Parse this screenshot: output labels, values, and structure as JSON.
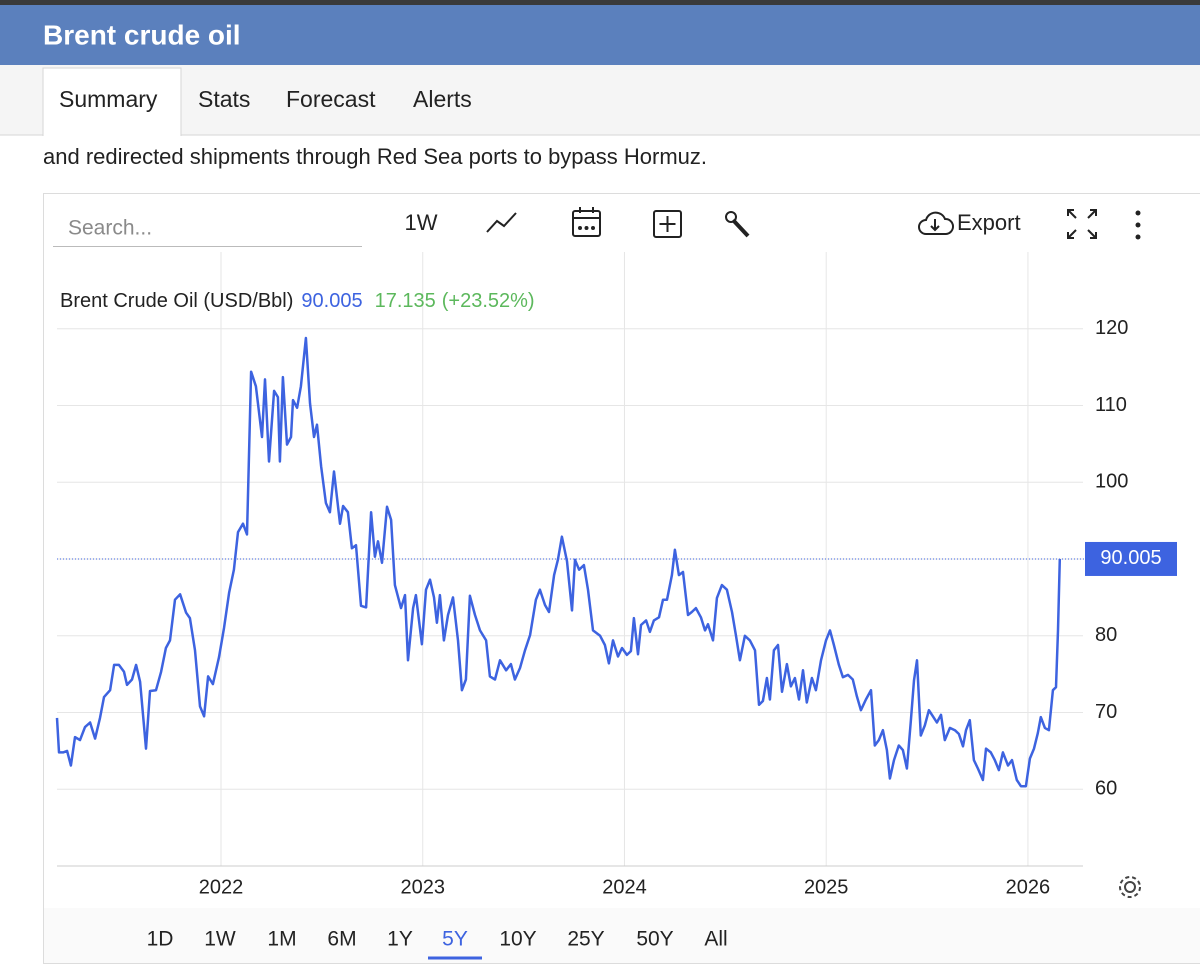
{
  "header": {
    "title": "Brent crude oil"
  },
  "tabs": [
    "Summary",
    "Stats",
    "Forecast",
    "Alerts"
  ],
  "active_tab": "Summary",
  "intro": "and redirected shipments through Red Sea ports to bypass Hormuz.",
  "toolbar": {
    "search_placeholder": "Search...",
    "interval": "1W",
    "export": "Export"
  },
  "ranges": [
    "1D",
    "1W",
    "1M",
    "6M",
    "1Y",
    "5Y",
    "10Y",
    "25Y",
    "50Y",
    "All"
  ],
  "active_range": "5Y",
  "chart_data": {
    "type": "line",
    "x": [
      2021.187,
      2021.197,
      2021.217,
      2021.237,
      2021.256,
      2021.276,
      2021.301,
      2021.326,
      2021.351,
      2021.376,
      2021.4,
      2021.42,
      2021.45,
      2021.47,
      2021.494,
      2021.519,
      2021.534,
      2021.559,
      2021.579,
      2021.599,
      2021.628,
      2021.648,
      2021.678,
      2021.703,
      2021.727,
      2021.747,
      2021.772,
      2021.797,
      2021.827,
      2021.846,
      2021.871,
      2021.896,
      2021.916,
      2021.936,
      2021.96,
      2021.99,
      2022.015,
      2022.04,
      2022.064,
      2022.084,
      2022.109,
      2022.129,
      2022.149,
      2022.173,
      2022.203,
      2022.218,
      2022.238,
      2022.263,
      2022.282,
      2022.292,
      2022.307,
      2022.327,
      2022.347,
      2022.357,
      2022.377,
      2022.396,
      2022.421,
      2022.441,
      2022.461,
      2022.476,
      2022.496,
      2022.52,
      2022.54,
      2022.56,
      2022.59,
      2022.605,
      2022.629,
      2022.649,
      2022.669,
      2022.694,
      2022.719,
      2022.744,
      2022.763,
      2022.778,
      2022.798,
      2022.823,
      2022.843,
      2022.862,
      2022.892,
      2022.912,
      2022.927,
      2022.952,
      2022.966,
      2022.996,
      2023.016,
      2023.036,
      2023.056,
      2023.07,
      2023.085,
      2023.105,
      2023.125,
      2023.15,
      2023.175,
      2023.194,
      2023.214,
      2023.234,
      2023.259,
      2023.284,
      2023.314,
      2023.333,
      2023.358,
      2023.383,
      2023.413,
      2023.437,
      2023.457,
      2023.482,
      2023.507,
      2023.532,
      2023.561,
      2023.581,
      2023.606,
      2023.626,
      2023.651,
      2023.67,
      2023.69,
      2023.715,
      2023.74,
      2023.755,
      2023.775,
      2023.799,
      2023.819,
      2023.844,
      2023.879,
      2023.903,
      2023.923,
      2023.943,
      2023.968,
      2023.988,
      2024.012,
      2024.032,
      2024.047,
      2024.067,
      2024.082,
      2024.107,
      2024.126,
      2024.146,
      2024.171,
      2024.191,
      2024.211,
      2024.235,
      2024.25,
      2024.27,
      2024.29,
      2024.315,
      2024.334,
      2024.354,
      2024.379,
      2024.399,
      2024.414,
      2024.439,
      2024.458,
      2024.483,
      2024.508,
      2024.533,
      2024.553,
      2024.572,
      2024.597,
      2024.622,
      2024.647,
      2024.667,
      2024.686,
      2024.706,
      2024.721,
      2024.741,
      2024.761,
      2024.781,
      2024.805,
      2024.825,
      2024.845,
      2024.865,
      2024.885,
      2024.904,
      2024.929,
      2024.949,
      2024.974,
      2024.999,
      2025.019,
      2025.038,
      2025.063,
      2025.083,
      2025.108,
      2025.132,
      2025.152,
      2025.172,
      2025.197,
      2025.222,
      2025.241,
      2025.261,
      2025.281,
      2025.301,
      2025.316,
      2025.336,
      2025.36,
      2025.38,
      2025.4,
      2025.42,
      2025.435,
      2025.45,
      2025.469,
      2025.489,
      2025.509,
      2025.529,
      2025.549,
      2025.569,
      2025.588,
      2025.613,
      2025.638,
      2025.658,
      2025.678,
      2025.693,
      2025.712,
      2025.732,
      2025.752,
      2025.777,
      2025.792,
      2025.816,
      2025.836,
      2025.856,
      2025.876,
      2025.901,
      2025.921,
      2025.945,
      2025.965,
      2025.99,
      2026.01,
      2026.03,
      2026.049,
      2026.064,
      2026.084,
      2026.104,
      2026.124,
      2026.139,
      2026.149,
      2026.158
    ],
    "series": [
      {
        "name": "Brent Crude Oil (USD/Bbl)",
        "color": "#3d63e0",
        "values": [
          69.3,
          64.8,
          64.8,
          65,
          63.1,
          66.8,
          66.4,
          68.1,
          68.7,
          66.6,
          69.3,
          72,
          72.9,
          76.2,
          76.2,
          75.3,
          73.6,
          74.3,
          76.2,
          74,
          65.3,
          72.8,
          72.9,
          75.3,
          78.4,
          79.4,
          84.7,
          85.4,
          83,
          82.3,
          78.1,
          70.8,
          69.5,
          74.7,
          73.7,
          77.2,
          81,
          85.6,
          88.6,
          93.5,
          94.6,
          93.2,
          114.4,
          112.5,
          105.9,
          113.4,
          102.7,
          111.9,
          111.1,
          102.7,
          113.7,
          104.9,
          105.9,
          110.7,
          109.7,
          112.5,
          118.8,
          110.3,
          105.9,
          107.5,
          102.1,
          97.3,
          96.1,
          101.4,
          94.6,
          96.9,
          96.1,
          91.4,
          91.8,
          83.9,
          83.7,
          96.1,
          90.3,
          92.3,
          89.5,
          96.8,
          95.1,
          86.6,
          83.6,
          85.3,
          76.8,
          83.6,
          85.3,
          78.9,
          86,
          87.3,
          85,
          81.7,
          85.3,
          79.4,
          82.7,
          85,
          79.4,
          72.9,
          74.3,
          85.2,
          82.7,
          80.7,
          79.4,
          74.7,
          74.3,
          76.8,
          75.5,
          76.3,
          74.3,
          75.8,
          78.1,
          80.1,
          84.7,
          86,
          84,
          83.1,
          87.9,
          89.9,
          92.9,
          89.7,
          83.3,
          89.9,
          88.6,
          89.2,
          86,
          80.7,
          80,
          78.8,
          76.4,
          79.4,
          77.3,
          78.4,
          77.5,
          78,
          82.3,
          77.6,
          81.4,
          82,
          80.5,
          82,
          82.4,
          84.7,
          84.7,
          87.9,
          91.2,
          87.9,
          88.3,
          82.7,
          83.1,
          83.6,
          82.4,
          80.7,
          81.5,
          79.4,
          84.9,
          86.6,
          86,
          83.1,
          80,
          76.8,
          80,
          79.4,
          78.1,
          71,
          71.5,
          74.5,
          71.7,
          78.1,
          78.8,
          72.7,
          76.3,
          73.4,
          74.5,
          71.7,
          75.5,
          71.3,
          74.5,
          72.9,
          76.8,
          79.4,
          80.7,
          78.8,
          76.2,
          74.6,
          74.9,
          74.3,
          72.1,
          70.3,
          71.7,
          72.9,
          65.7,
          66.4,
          67.7,
          65.1,
          61.4,
          63.8,
          65.7,
          65.1,
          62.7,
          69,
          74.2,
          76.8,
          67,
          68.3,
          70.3,
          69.5,
          68.7,
          69.7,
          66.4,
          68,
          67.7,
          67.2,
          65.6,
          67.7,
          69,
          63.8,
          62.7,
          61.2,
          65.3,
          64.8,
          63.8,
          62.5,
          64.8,
          63.1,
          63.8,
          61.2,
          60.4,
          60.4,
          64,
          65.3,
          67.3,
          69.4,
          68,
          67.7,
          72.9,
          73.3,
          80.7,
          90.005
        ]
      }
    ],
    "change": 17.135,
    "change_percent": "(+23.52%)",
    "xlim": [
      2021.187,
      2026.273
    ],
    "xticks": [
      2022,
      2023,
      2024,
      2025,
      2026
    ],
    "ylim": [
      50,
      130
    ],
    "yticks": [
      60,
      70,
      80,
      90,
      100,
      110,
      120
    ],
    "ytick_labels_shown": [
      60,
      70,
      80,
      100,
      110,
      120
    ],
    "grid": true
  }
}
